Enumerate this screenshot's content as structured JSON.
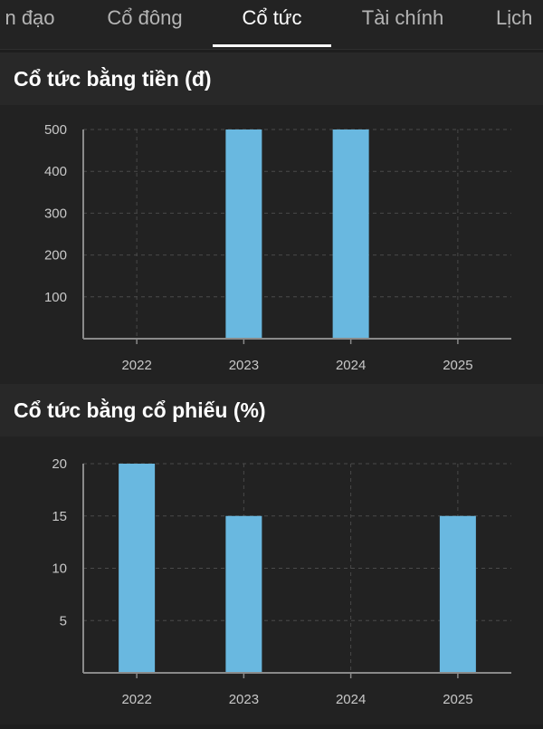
{
  "tabs": [
    {
      "label": "n đạo",
      "active": false
    },
    {
      "label": "Cổ đông",
      "active": false
    },
    {
      "label": "Cổ tức",
      "active": true
    },
    {
      "label": "Tài chính",
      "active": false
    },
    {
      "label": "Lịch",
      "active": false
    }
  ],
  "sections": {
    "cash": {
      "title": "Cổ tức bằng tiền (đ)"
    },
    "stock": {
      "title": "Cổ tức bằng cổ phiếu (%)"
    }
  },
  "colors": {
    "bar": "#69b8e0",
    "grid": "#4a4a4a",
    "axis": "#8a8a8a",
    "tick_text": "#c8c8c8"
  },
  "chart_data": [
    {
      "type": "bar",
      "title": "Cổ tức bằng tiền (đ)",
      "categories": [
        "2022",
        "2023",
        "2024",
        "2025"
      ],
      "values": [
        0,
        500,
        500,
        0
      ],
      "yticks": [
        100,
        200,
        300,
        400,
        500
      ],
      "ylim": [
        0,
        500
      ],
      "grid": true
    },
    {
      "type": "bar",
      "title": "Cổ tức bằng cổ phiếu (%)",
      "categories": [
        "2022",
        "2023",
        "2024",
        "2025"
      ],
      "values": [
        20,
        15,
        0,
        15
      ],
      "yticks": [
        5,
        10,
        15,
        20
      ],
      "ylim": [
        0,
        20
      ],
      "grid": true
    }
  ]
}
